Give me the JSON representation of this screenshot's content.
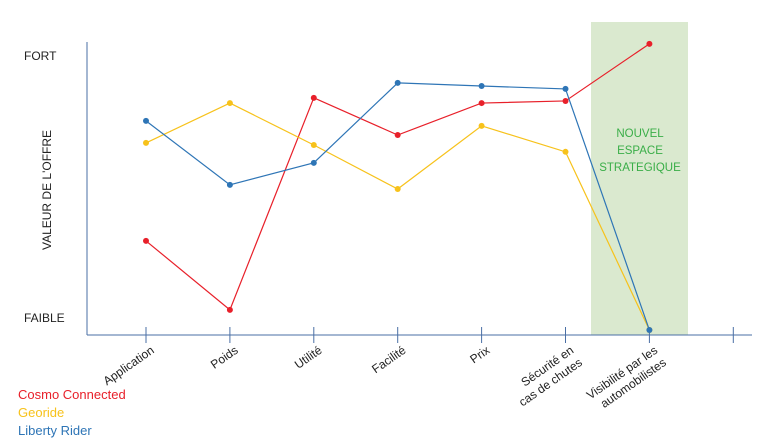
{
  "chart_data": {
    "type": "line",
    "y_label": "VALEUR DE L'OFFRE",
    "categories": [
      [
        "Application"
      ],
      [
        "Poids"
      ],
      [
        "Utilité"
      ],
      [
        "Facilité"
      ],
      [
        "Prix"
      ],
      [
        "Sécurité en",
        "cas de chutes"
      ],
      [
        "Visibilité par les",
        "automobilistes"
      ],
      null
    ],
    "series": [
      {
        "name": "Cosmo Connected",
        "color": "#e8202a",
        "values": [
          29.4,
          3.1,
          84,
          69.8,
          82,
          82.8,
          104.6,
          null
        ]
      },
      {
        "name": "Georide",
        "color": "#f7c21b",
        "values": [
          66.8,
          82,
          66,
          49.2,
          73.3,
          63.4,
          -4.6,
          null
        ]
      },
      {
        "name": "Liberty Rider",
        "color": "#2e75b6",
        "values": [
          75.2,
          50.8,
          59.2,
          89.7,
          88.5,
          87.4,
          -4.6,
          null
        ]
      }
    ],
    "ylim": [
      -6.5,
      105.3
    ],
    "yticks": [
      {
        "value": 0,
        "label": "FAIBLE"
      },
      {
        "value": 100,
        "label": "FORT"
      }
    ],
    "annotation": {
      "lines": [
        "NOUVEL",
        "ESPACE",
        "STRATEGIQUE"
      ],
      "color": "#3aae48",
      "fill": "#dae9cf"
    }
  }
}
